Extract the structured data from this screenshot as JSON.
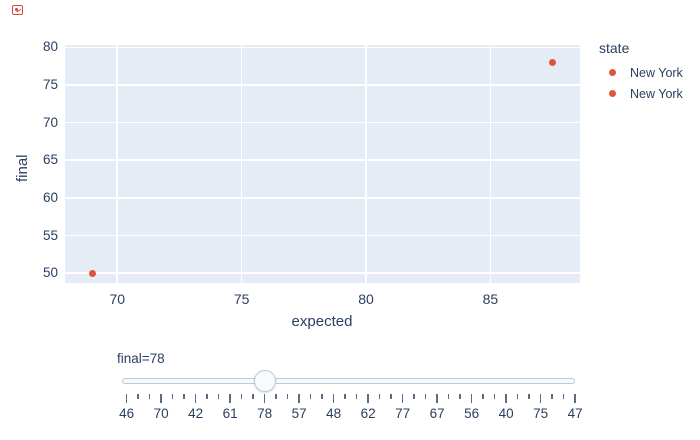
{
  "icon": {
    "name": "broken-image-icon",
    "color": "#d14836"
  },
  "chart_data": {
    "type": "scatter",
    "title": "",
    "xlabel": "expected",
    "ylabel": "final",
    "x_ticks": [
      70,
      75,
      80,
      85
    ],
    "y_ticks": [
      50,
      55,
      60,
      65,
      70,
      75,
      80
    ],
    "xlim": [
      67.9,
      88.6
    ],
    "ylim": [
      48.7,
      80.3
    ],
    "grid": true,
    "plot_bg": "#E5ECF6",
    "gridline_color": "#FFFFFF",
    "text_color": "#2a3f5f",
    "marker_color": "#DE553C",
    "legend": {
      "title": "state",
      "position": "right",
      "entries": [
        {
          "label": "New York",
          "color": "#DE553C"
        },
        {
          "label": "New York",
          "color": "#DE553C"
        }
      ]
    },
    "series": [
      {
        "name": "New York",
        "color": "#DE553C",
        "points": [
          {
            "x": 69,
            "y": 50
          }
        ]
      },
      {
        "name": "New York",
        "color": "#DE553C",
        "points": [
          {
            "x": 87.5,
            "y": 78
          }
        ]
      }
    ]
  },
  "slider": {
    "current_label": "final=78",
    "current_value": "78",
    "tick_labels": [
      "46",
      "70",
      "42",
      "61",
      "78",
      "57",
      "48",
      "62",
      "77",
      "67",
      "56",
      "40",
      "75",
      "47"
    ],
    "active_index": 4,
    "minor_ticks_between_majors": 2
  }
}
